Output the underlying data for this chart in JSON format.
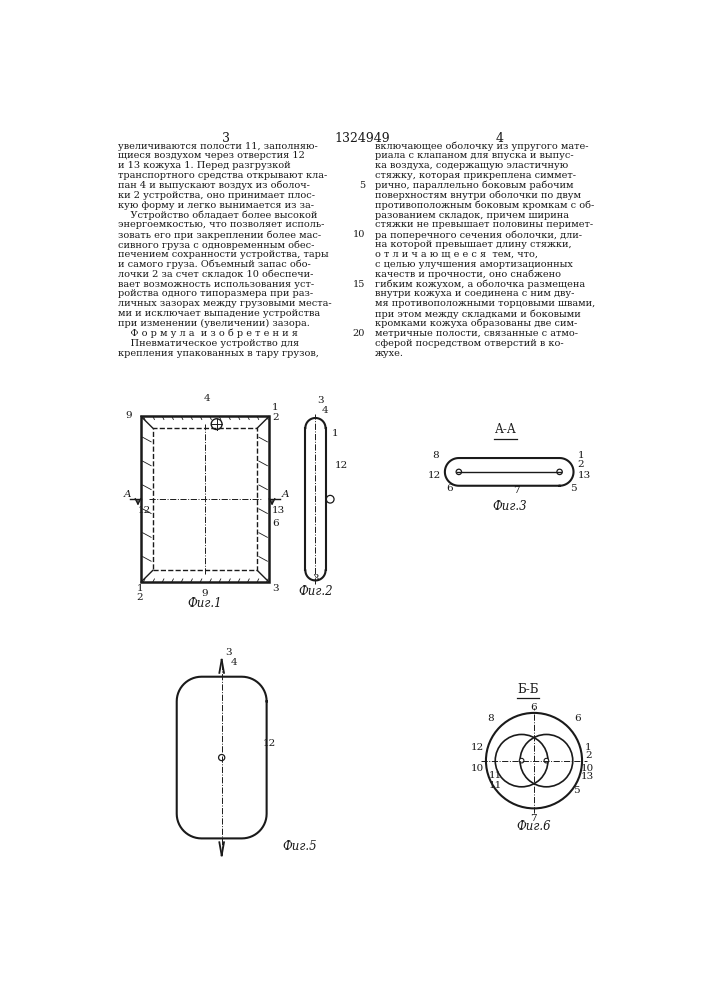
{
  "page_width": 7.07,
  "page_height": 10.0,
  "bg_color": "#ffffff",
  "line_color": "#1a1a1a",
  "text_color": "#1a1a1a",
  "page_num_left": "3",
  "page_num_center": "1324949",
  "page_num_right": "4",
  "col1_text": [
    "увеличиваются полости 11, заполняю-",
    "щиеся воздухом через отверстия 12",
    "и 13 кожуха 1. Перед разгрузкой",
    "транспортного средства открывают кла-",
    "пан 4 и выпускают воздух из оболоч-",
    "ки 2 устройства, оно принимает плос-",
    "кую форму и легко вынимается из за-",
    "    Устройство обладает более высокой",
    "энергоемкостью, что позволяет исполь-",
    "зовать его при закреплении более мас-",
    "сивного груза с одновременным обес-",
    "печением сохранности устройства, тары",
    "и самого груза. Объемный запас обо-",
    "лочки 2 за счет складок 10 обеспечи-",
    "вает возможность использования уст-",
    "ройства одного типоразмера при раз-",
    "личных зазорах между грузовыми места-",
    "ми и исключает выпадение устройства",
    "при изменении (увеличении) зазора.",
    "    Ф о р м у л а  и з о б р е т е н и я",
    "    Пневматическое устройство для",
    "крепления упакованных в тару грузов,"
  ],
  "col2_text": [
    "включающее оболочку из упругого мате-",
    "риала с клапаном для впуска и выпус-",
    "ка воздуха, содержащую эластичную",
    "стяжку, которая прикреплена симмет-",
    "рично, параллельно боковым рабочим",
    "поверхностям внутри оболочки по двум",
    "противоположным боковым кромкам с об-",
    "разованием складок, причем ширина",
    "стяжки не превышает половины перимет-",
    "ра поперечного сечения оболочки, дли-",
    "на которой превышает длину стяжки,",
    "о т л и ч а ю щ е е с я  тем, что,",
    "с целью улучшения амортизационных",
    "качеств и прочности, оно снабжено",
    "гибким кожухом, а оболочка размещена",
    "внутри кожуха и соединена с ним дву-",
    "мя противоположными торцовыми швами,",
    "при этом между складками и боковыми",
    "кромками кожуха образованы две сим-",
    "метричные полости, связанные с атмо-",
    "сферой посредством отверстий в ко-",
    "жухе."
  ]
}
